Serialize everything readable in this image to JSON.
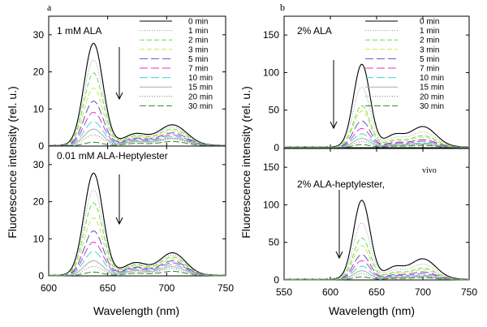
{
  "figure": {
    "panel_labels": [
      "a",
      "b"
    ],
    "note_b_lower": "vivo"
  },
  "legend": {
    "entries": [
      "0 min",
      "1 min",
      "2 min",
      "3 min",
      "5 min",
      "7 min",
      "10 min",
      "15 min",
      "20 min",
      "30 min"
    ],
    "colors": [
      "#000000",
      "#9a9a9a",
      "#66dd55",
      "#d4e24a",
      "#5555cc",
      "#dd33cc",
      "#33ddcc",
      "#aaaaaa",
      "#777777",
      "#2e8b2e"
    ],
    "dash": [
      "",
      "1,2",
      "6,3",
      "6,3",
      "10,4",
      "10,4",
      "10,4",
      "",
      "1,2",
      "8,3"
    ]
  },
  "chart_data": [
    {
      "type": "line",
      "panel": "a-top",
      "title": "1 mM ALA",
      "xlabel": "Wavelength (nm)",
      "ylabel": "Fluorescence intensity (rel. u.)",
      "xlim": [
        600,
        750
      ],
      "ylim": [
        0,
        35
      ],
      "xticks": [
        600,
        650,
        700,
        750
      ],
      "yticks": [
        0,
        10,
        20,
        30
      ],
      "peak1": {
        "center": 638,
        "width": 8
      },
      "peak2": {
        "center": 705,
        "width": 12
      },
      "series": [
        {
          "name": "0 min",
          "peak1": 27.5,
          "peak2": 5.5
        },
        {
          "name": "1 min",
          "peak1": 23.0,
          "peak2": 4.9
        },
        {
          "name": "2 min",
          "peak1": 19.5,
          "peak2": 4.4
        },
        {
          "name": "3 min",
          "peak1": 15.5,
          "peak2": 3.9
        },
        {
          "name": "5 min",
          "peak1": 12.0,
          "peak2": 3.4
        },
        {
          "name": "7 min",
          "peak1": 9.0,
          "peak2": 2.9
        },
        {
          "name": "10 min",
          "peak1": 6.5,
          "peak2": 2.5
        },
        {
          "name": "15 min",
          "peak1": 4.5,
          "peak2": 2.1
        },
        {
          "name": "20 min",
          "peak1": 3.0,
          "peak2": 1.8
        },
        {
          "name": "30 min",
          "peak1": 1.0,
          "peak2": 1.2
        }
      ]
    },
    {
      "type": "line",
      "panel": "a-bottom",
      "title": "0.01 mM ALA-Heptylester",
      "xlabel": "Wavelength (nm)",
      "ylabel": "Fluorescence intensity (rel. u.)",
      "xlim": [
        600,
        750
      ],
      "ylim": [
        0,
        35
      ],
      "xticks": [
        600,
        650,
        700,
        750
      ],
      "yticks": [
        0,
        10,
        20,
        30
      ],
      "peak1": {
        "center": 638,
        "width": 8
      },
      "peak2": {
        "center": 705,
        "width": 11
      },
      "series": [
        {
          "name": "0 min",
          "peak1": 27.5,
          "peak2": 6.0
        },
        {
          "name": "1 min",
          "peak1": 23.0,
          "peak2": 5.4
        },
        {
          "name": "2 min",
          "peak1": 19.5,
          "peak2": 4.9
        },
        {
          "name": "3 min",
          "peak1": 15.5,
          "peak2": 4.4
        },
        {
          "name": "5 min",
          "peak1": 12.0,
          "peak2": 3.9
        },
        {
          "name": "7 min",
          "peak1": 9.0,
          "peak2": 3.4
        },
        {
          "name": "10 min",
          "peak1": 6.5,
          "peak2": 2.9
        },
        {
          "name": "15 min",
          "peak1": 4.0,
          "peak2": 2.4
        },
        {
          "name": "20 min",
          "peak1": 2.5,
          "peak2": 1.9
        },
        {
          "name": "30 min",
          "peak1": 1.0,
          "peak2": 1.2
        }
      ]
    },
    {
      "type": "line",
      "panel": "b-top",
      "title": "2% ALA",
      "xlabel": "Wavelength (nm)",
      "ylabel": "Fluorescence intensity (rel. u.)",
      "xlim": [
        550,
        750
      ],
      "ylim": [
        0,
        175
      ],
      "xticks": [
        550,
        600,
        650,
        700,
        750
      ],
      "yticks": [
        0,
        50,
        100,
        150
      ],
      "peak1": {
        "center": 634,
        "width": 9
      },
      "peak2": {
        "center": 700,
        "width": 14
      },
      "series": [
        {
          "name": "0 min",
          "peak1": 110,
          "peak2": 27
        },
        {
          "name": "1 min",
          "peak1": 80,
          "peak2": 20
        },
        {
          "name": "2 min",
          "peak1": 55,
          "peak2": 15
        },
        {
          "name": "3 min",
          "peak1": 48,
          "peak2": 13
        },
        {
          "name": "5 min",
          "peak1": 35,
          "peak2": 10
        },
        {
          "name": "7 min",
          "peak1": 25,
          "peak2": 8
        },
        {
          "name": "10 min",
          "peak1": 18,
          "peak2": 6
        },
        {
          "name": "15 min",
          "peak1": 12,
          "peak2": 5
        },
        {
          "name": "20 min",
          "peak1": 8,
          "peak2": 4
        },
        {
          "name": "30 min",
          "peak1": 4,
          "peak2": 3
        }
      ]
    },
    {
      "type": "line",
      "panel": "b-bottom",
      "title": "2% ALA-heptylester,",
      "xlabel": "Wavelength (nm)",
      "ylabel": "Fluorescence intensity (rel. u.)",
      "xlim": [
        550,
        750
      ],
      "ylim": [
        0,
        175
      ],
      "xticks": [
        550,
        600,
        650,
        700,
        750
      ],
      "yticks": [
        0,
        50,
        100,
        150
      ],
      "peak1": {
        "center": 634,
        "width": 9
      },
      "peak2": {
        "center": 700,
        "width": 14
      },
      "series": [
        {
          "name": "0 min",
          "peak1": 105,
          "peak2": 27
        },
        {
          "name": "1 min",
          "peak1": 75,
          "peak2": 20
        },
        {
          "name": "2 min",
          "peak1": 55,
          "peak2": 15
        },
        {
          "name": "3 min",
          "peak1": 45,
          "peak2": 13
        },
        {
          "name": "5 min",
          "peak1": 33,
          "peak2": 10
        },
        {
          "name": "7 min",
          "peak1": 25,
          "peak2": 8
        },
        {
          "name": "10 min",
          "peak1": 18,
          "peak2": 6
        },
        {
          "name": "15 min",
          "peak1": 12,
          "peak2": 5
        },
        {
          "name": "20 min",
          "peak1": 8,
          "peak2": 4
        },
        {
          "name": "30 min",
          "peak1": 4,
          "peak2": 3
        }
      ]
    }
  ]
}
